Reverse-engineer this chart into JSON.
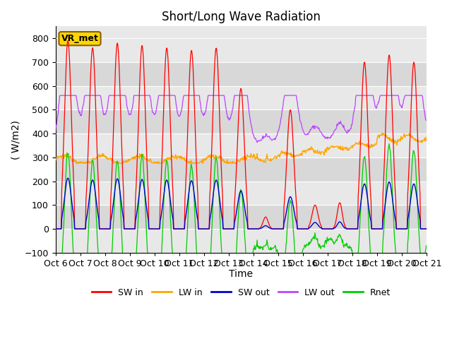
{
  "title": "Short/Long Wave Radiation",
  "ylabel": "( W/m2)",
  "xlabel": "Time",
  "ylim": [
    -100,
    850
  ],
  "xtick_labels": [
    "Oct 6",
    "Oct 7",
    "Oct 8",
    "Oct 9",
    "Oct 10",
    "Oct 11",
    "Oct 12",
    "Oct 13",
    "Oct 14",
    "Oct 15",
    "Oct 16",
    "Oct 17",
    "Oct 18",
    "Oct 19",
    "Oct 20",
    "Oct 21"
  ],
  "legend_labels": [
    "SW in",
    "LW in",
    "SW out",
    "LW out",
    "Rnet"
  ],
  "colors": {
    "SW_in": "#FF0000",
    "LW_in": "#FFA500",
    "SW_out": "#0000CC",
    "LW_out": "#BB44FF",
    "Rnet": "#00CC00"
  },
  "annotation_text": "VR_met",
  "annotation_color": "#FFD700",
  "annotation_border_color": "#8B6000",
  "title_fontsize": 12,
  "label_fontsize": 10,
  "tick_fontsize": 9,
  "pts_per_day": 48,
  "n_days": 15,
  "SW_in_peaks": [
    790,
    760,
    780,
    770,
    760,
    750,
    760,
    590,
    50,
    500,
    100,
    110,
    700,
    730,
    700
  ],
  "SW_in_widths": [
    0.14,
    0.14,
    0.14,
    0.14,
    0.14,
    0.14,
    0.14,
    0.14,
    0.1,
    0.14,
    0.12,
    0.1,
    0.14,
    0.14,
    0.14
  ]
}
